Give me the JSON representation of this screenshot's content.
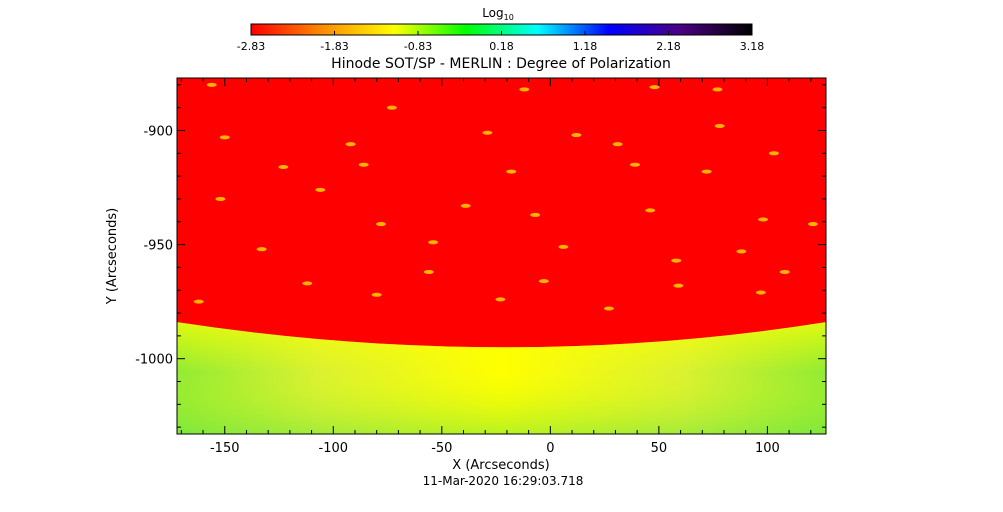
{
  "colorbar": {
    "label": "Log",
    "label_subscript": "10",
    "ticks": [
      "-2.83",
      "-1.83",
      "-0.83",
      "0.18",
      "1.18",
      "2.18",
      "3.18"
    ],
    "colors": [
      "#ff0000",
      "#ff8c00",
      "#ffff00",
      "#00ff00",
      "#00ffff",
      "#0000ff",
      "#4b0082",
      "#000000"
    ]
  },
  "footer": {
    "timestamp": "11-Mar-2020 16:29:03.718"
  },
  "chart_data": {
    "type": "heatmap",
    "title": "Hinode SOT/SP - MERLIN : Degree of Polarization",
    "xlabel": "X (Arcseconds)",
    "ylabel": "Y (Arcseconds)",
    "xlim": [
      -172,
      127
    ],
    "ylim": [
      -1033,
      -877
    ],
    "x_ticks": [
      -150,
      -100,
      -50,
      0,
      50,
      100
    ],
    "x_tick_labels": [
      "-150",
      "-100",
      "-50",
      "0",
      "50",
      "100"
    ],
    "y_ticks": [
      -900,
      -950,
      -1000
    ],
    "y_tick_labels": [
      "-900",
      "-950",
      "-1000"
    ],
    "colors": {
      "disk": "#ff0000",
      "limb_bright": "#ffff00",
      "limb_mid": "#d4ef3a",
      "limb_far": "#7ee83c",
      "patch": "#ffb300"
    },
    "limb_y_edge": -984,
    "limb_y_center": -995,
    "patches": [
      [
        -156,
        -880
      ],
      [
        -73,
        -890
      ],
      [
        -12,
        -882
      ],
      [
        48,
        -881
      ],
      [
        77,
        -882
      ],
      [
        -92,
        -906
      ],
      [
        12,
        -902
      ],
      [
        31,
        -906
      ],
      [
        78,
        -898
      ],
      [
        103,
        -910
      ],
      [
        -123,
        -916
      ],
      [
        -86,
        -915
      ],
      [
        -18,
        -918
      ],
      [
        39,
        -915
      ],
      [
        72,
        -918
      ],
      [
        -152,
        -930
      ],
      [
        -106,
        -926
      ],
      [
        -39,
        -933
      ],
      [
        46,
        -935
      ],
      [
        121,
        -941
      ],
      [
        -133,
        -952
      ],
      [
        -54,
        -949
      ],
      [
        6,
        -951
      ],
      [
        58,
        -957
      ],
      [
        88,
        -953
      ],
      [
        -112,
        -967
      ],
      [
        -56,
        -962
      ],
      [
        -3,
        -966
      ],
      [
        59,
        -968
      ],
      [
        97,
        -971
      ],
      [
        -162,
        -975
      ],
      [
        -23,
        -974
      ],
      [
        27,
        -978
      ],
      [
        108,
        -962
      ],
      [
        -78,
        -941
      ],
      [
        -7,
        -937
      ],
      [
        98,
        -939
      ],
      [
        -150,
        -903
      ],
      [
        -29,
        -901
      ],
      [
        -80,
        -972
      ]
    ]
  }
}
